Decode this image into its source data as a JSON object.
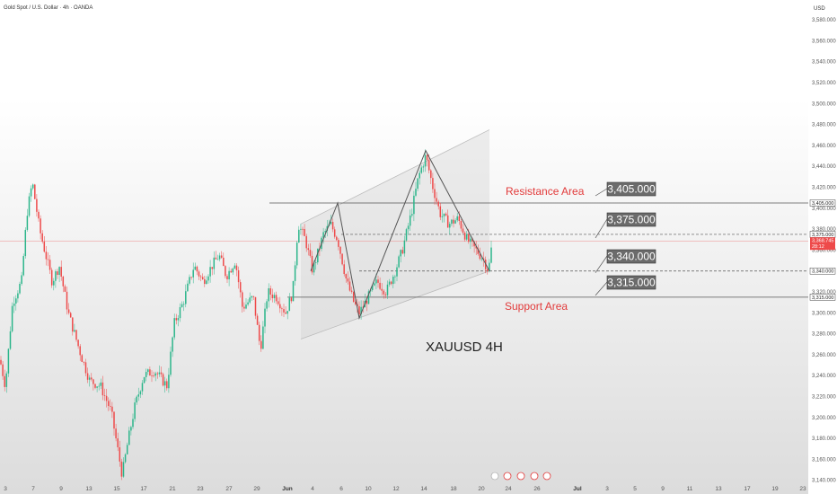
{
  "header": {
    "title": "Gold Spot / U.S. Dollar · 4h · OANDA",
    "currency": "USD"
  },
  "colors": {
    "up": "#2bb58a",
    "down": "#ee4a4a",
    "accent": "#e23b3b",
    "box": "#6b6b6b",
    "channel": "#bbbbbb"
  },
  "chart_data": {
    "type": "candlestick",
    "title": "Gold Spot / U.S. Dollar · 4h · OANDA",
    "symbol_label": "XAUUSD 4H",
    "ylabel": "USD",
    "ylim": [
      3130,
      3600
    ],
    "y_ticks": [
      "3,580.000",
      "3,560.000",
      "3,540.000",
      "3,520.000",
      "3,500.000",
      "3,480.000",
      "3,460.000",
      "3,440.000",
      "3,420.000",
      "3,400.000",
      "3,380.000",
      "3,360.000",
      "3,320.000",
      "3,300.000",
      "3,280.000",
      "3,260.000",
      "3,240.000",
      "3,220.000",
      "3,200.000",
      "3,180.000",
      "3,160.000",
      "3,140.000"
    ],
    "x_ticks": [
      "3",
      "7",
      "9",
      "13",
      "15",
      "17",
      "21",
      "23",
      "27",
      "29",
      "Jun",
      "4",
      "6",
      "10",
      "12",
      "14",
      "18",
      "20",
      "24",
      "26",
      "Jul",
      "3",
      "5",
      "9",
      "11",
      "13",
      "17",
      "19",
      "23"
    ],
    "levels": [
      {
        "label": "3,405.000",
        "value": 3405,
        "tag": "3,405.000"
      },
      {
        "label": "3,375.000",
        "value": 3375,
        "tag": "3,375.000"
      },
      {
        "label": "3,340.000",
        "value": 3340,
        "tag": "3,340.000"
      },
      {
        "label": "3,315.000",
        "value": 3315,
        "tag": "3,315.000"
      }
    ],
    "current_price": {
      "value": 3368.745,
      "tag": "3,368.745",
      "countdown": "28:12"
    },
    "annotations": {
      "resistance": "Resistance Area",
      "support": "Support Area"
    },
    "channel": {
      "lower": [
        [
          0,
          3275
        ],
        [
          1,
          3340
        ]
      ],
      "upper": [
        [
          0,
          3385
        ],
        [
          1,
          3475
        ]
      ]
    },
    "zigzag": [
      3340,
      3405,
      3295,
      3455,
      3340
    ],
    "candles_summary": {
      "low": 3140,
      "high": 3455
    }
  }
}
